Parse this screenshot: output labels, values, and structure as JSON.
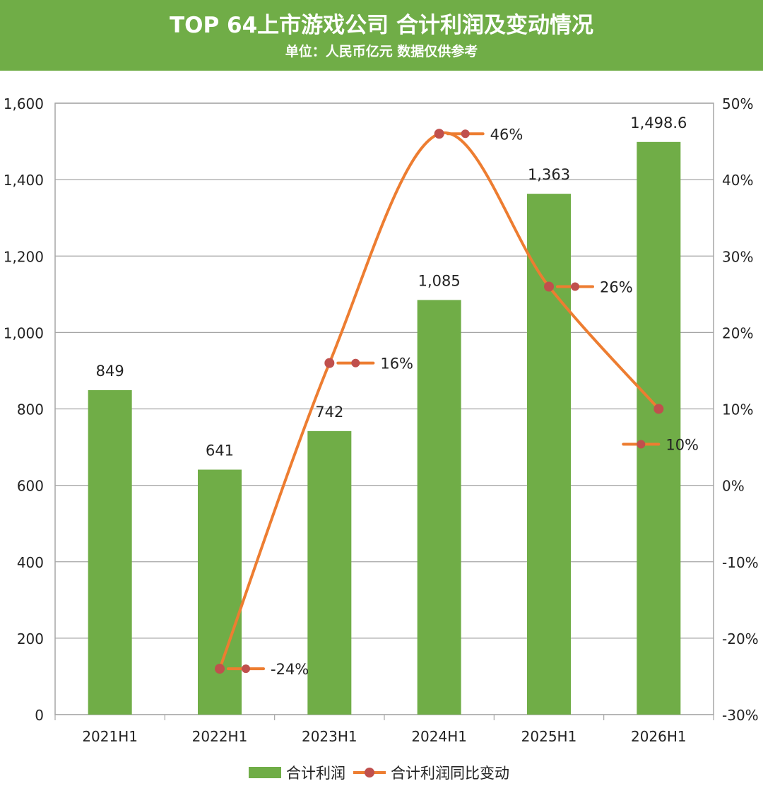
{
  "header": {
    "title": "TOP 64上市游戏公司 合计利润及变动情况",
    "subtitle": "单位：人民币亿元 数据仅供参考"
  },
  "colors": {
    "banner": "#70ad47",
    "bar": "#70ad47",
    "line": "#ed7d31",
    "marker": "#c0504d",
    "grid": "#a6a6a6",
    "text": "#222222"
  },
  "chart_data": {
    "type": "bar",
    "categories": [
      "2021H1",
      "2022H1",
      "2023H1",
      "2024H1",
      "2025H1",
      "2026H1"
    ],
    "series": [
      {
        "name": "合计利润",
        "type": "bar",
        "axis": "left",
        "values": [
          849,
          641,
          742,
          1085,
          1363,
          1498.6
        ],
        "labels": [
          "849",
          "641",
          "742",
          "1,085",
          "1,363",
          "1,498.6"
        ]
      },
      {
        "name": "合计利润同比变动",
        "type": "line",
        "axis": "right",
        "values": [
          null,
          -24,
          16,
          46,
          26,
          10
        ],
        "labels": [
          "",
          "-24%",
          "16%",
          "46%",
          "26%",
          "10%"
        ]
      }
    ],
    "y_left": {
      "min": 0,
      "max": 1600,
      "ticks": [
        0,
        200,
        400,
        600,
        800,
        1000,
        1200,
        1400,
        1600
      ],
      "tick_labels": [
        "0",
        "200",
        "400",
        "600",
        "800",
        "1,000",
        "1,200",
        "1,400",
        "1,600"
      ]
    },
    "y_right": {
      "min": -30,
      "max": 50,
      "ticks": [
        -30,
        -20,
        -10,
        0,
        10,
        20,
        30,
        40,
        50
      ],
      "tick_labels": [
        "-30%",
        "-20%",
        "-10%",
        "0%",
        "10%",
        "20%",
        "30%",
        "40%",
        "50%"
      ]
    },
    "grid": true,
    "smooth_line": true,
    "legend_position": "bottom-center"
  }
}
